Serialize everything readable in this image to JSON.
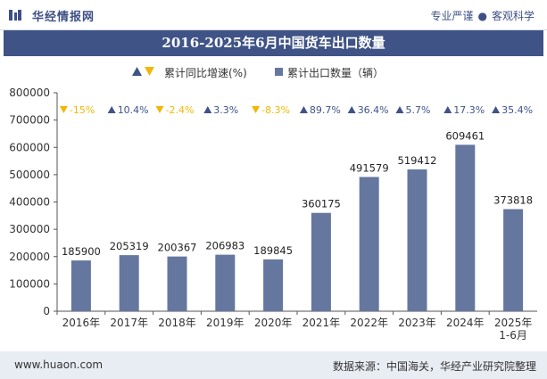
{
  "header": {
    "brand": "华经情报网",
    "slogan_left": "专业严谨",
    "slogan_right": "客观科学",
    "slogan_sep": "●"
  },
  "title": "2016-2025年6月中国货车出口数量",
  "legend": {
    "growth_label": "累计同比增速(%)",
    "export_label": "累计出口数量（辆）"
  },
  "footer": {
    "url": "www.huaon.com",
    "source": "数据来源：中国海关，华经产业研究院整理"
  },
  "colors": {
    "bar": "#65779f",
    "title_band": "#3f5386",
    "up": "#3f5386",
    "down": "#f2b705"
  },
  "chart_data": {
    "type": "bar",
    "categories": [
      "2016年",
      "2017年",
      "2018年",
      "2019年",
      "2020年",
      "2021年",
      "2022年",
      "2023年",
      "2024年",
      "2025年\n1-6月"
    ],
    "series": [
      {
        "name": "累计出口数量（辆）",
        "values": [
          185900,
          205319,
          200367,
          206983,
          189845,
          360175,
          491579,
          519412,
          609461,
          373818
        ]
      }
    ],
    "growth_series": {
      "name": "累计同比增速(%)",
      "values": [
        -15,
        10.4,
        -2.4,
        3.3,
        -8.3,
        89.7,
        36.4,
        5.7,
        17.3,
        35.4
      ],
      "labels": [
        "-15%",
        "10.4%",
        "-2.4%",
        "3.3%",
        "-8.3%",
        "89.7%",
        "36.4%",
        "5.7%",
        "17.3%",
        "35.4%"
      ]
    },
    "data_labels": [
      "185900",
      "205319",
      "200367",
      "206983",
      "189845",
      "360175",
      "491579",
      "519412",
      "609461",
      "373818"
    ],
    "y_ticks": [
      "0",
      "100000",
      "200000",
      "300000",
      "400000",
      "500000",
      "600000",
      "700000",
      "800000"
    ],
    "ylim": [
      0,
      800000
    ],
    "grid": false,
    "legend_position": "top-center"
  }
}
